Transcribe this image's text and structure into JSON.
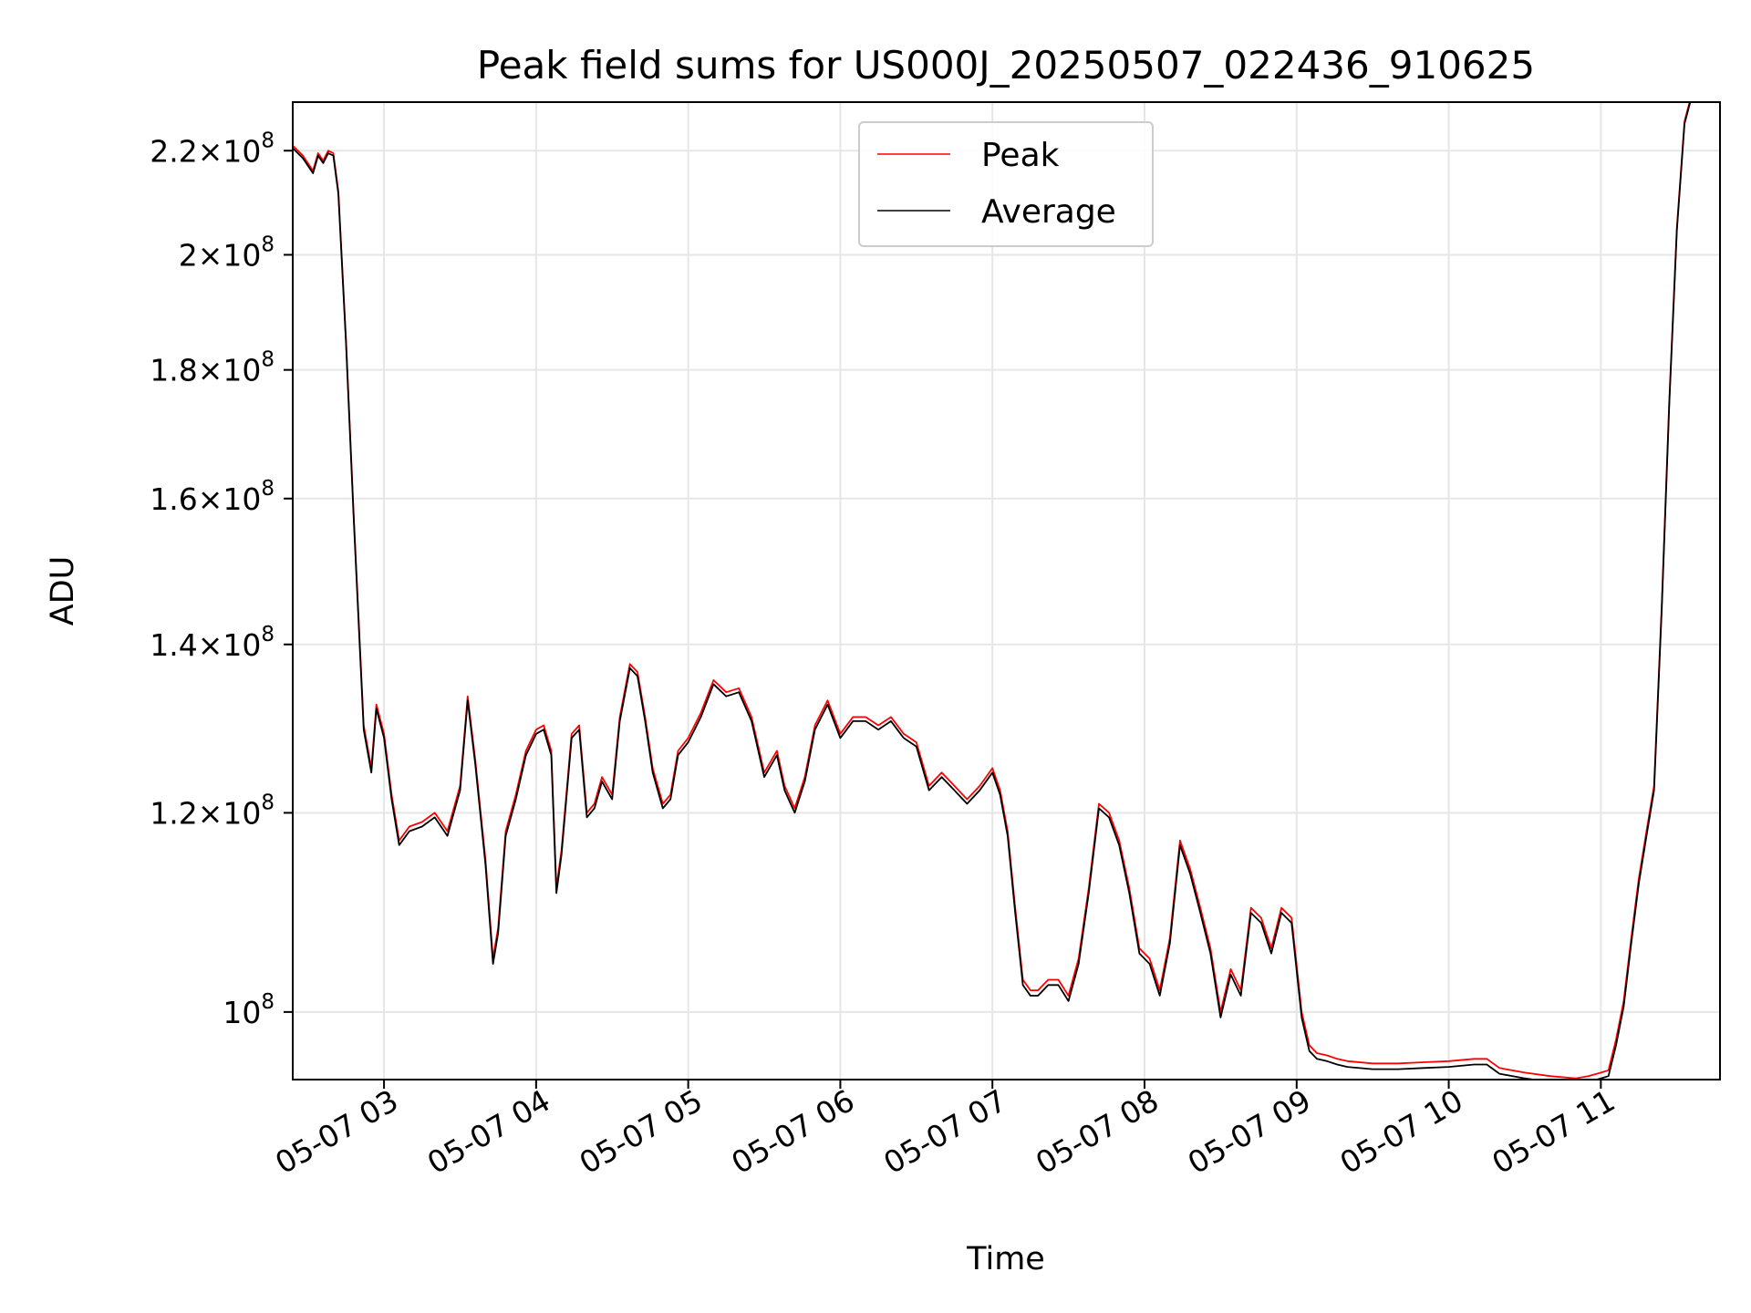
{
  "chart_data": {
    "type": "line",
    "title": "Peak field sums for US000J_20250507_022436_910625",
    "xlabel": "Time",
    "ylabel": "ADU",
    "y_scale": "log",
    "ylim": [
      94000000,
      230000000
    ],
    "xlim": [
      "05-07 02:24",
      "05-07 11:47"
    ],
    "grid": true,
    "legend_position": "top-center",
    "x_ticks": [
      {
        "time": "05-07 03:00",
        "label": "05-07 03"
      },
      {
        "time": "05-07 04:00",
        "label": "05-07 04"
      },
      {
        "time": "05-07 05:00",
        "label": "05-07 05"
      },
      {
        "time": "05-07 06:00",
        "label": "05-07 06"
      },
      {
        "time": "05-07 07:00",
        "label": "05-07 07"
      },
      {
        "time": "05-07 08:00",
        "label": "05-07 08"
      },
      {
        "time": "05-07 09:00",
        "label": "05-07 09"
      },
      {
        "time": "05-07 10:00",
        "label": "05-07 10"
      },
      {
        "time": "05-07 11:00",
        "label": "05-07 11"
      }
    ],
    "y_ticks": [
      {
        "value": 100000000,
        "mantissa": "",
        "exponent": "8"
      },
      {
        "value": 120000000,
        "mantissa": "1.2",
        "exponent": "8"
      },
      {
        "value": 140000000,
        "mantissa": "1.4",
        "exponent": "8"
      },
      {
        "value": 160000000,
        "mantissa": "1.6",
        "exponent": "8"
      },
      {
        "value": 180000000,
        "mantissa": "1.8",
        "exponent": "8"
      },
      {
        "value": 200000000,
        "mantissa": "2",
        "exponent": "8"
      },
      {
        "value": 220000000,
        "mantissa": "2.2",
        "exponent": "8"
      }
    ],
    "x": [
      "05-07 02:24",
      "05-07 02:28",
      "05-07 02:32",
      "05-07 02:34",
      "05-07 02:36",
      "05-07 02:38",
      "05-07 02:40",
      "05-07 02:42",
      "05-07 02:45",
      "05-07 02:48",
      "05-07 02:52",
      "05-07 02:55",
      "05-07 02:57",
      "05-07 03:00",
      "05-07 03:03",
      "05-07 03:06",
      "05-07 03:10",
      "05-07 03:15",
      "05-07 03:20",
      "05-07 03:25",
      "05-07 03:30",
      "05-07 03:33",
      "05-07 03:36",
      "05-07 03:40",
      "05-07 03:43",
      "05-07 03:45",
      "05-07 03:48",
      "05-07 03:52",
      "05-07 03:56",
      "05-07 04:00",
      "05-07 04:03",
      "05-07 04:06",
      "05-07 04:08",
      "05-07 04:10",
      "05-07 04:14",
      "05-07 04:17",
      "05-07 04:20",
      "05-07 04:23",
      "05-07 04:26",
      "05-07 04:30",
      "05-07 04:33",
      "05-07 04:37",
      "05-07 04:40",
      "05-07 04:43",
      "05-07 04:46",
      "05-07 04:50",
      "05-07 04:53",
      "05-07 04:56",
      "05-07 05:00",
      "05-07 05:05",
      "05-07 05:10",
      "05-07 05:15",
      "05-07 05:20",
      "05-07 05:25",
      "05-07 05:30",
      "05-07 05:35",
      "05-07 05:38",
      "05-07 05:42",
      "05-07 05:46",
      "05-07 05:50",
      "05-07 05:55",
      "05-07 06:00",
      "05-07 06:05",
      "05-07 06:10",
      "05-07 06:15",
      "05-07 06:20",
      "05-07 06:25",
      "05-07 06:30",
      "05-07 06:35",
      "05-07 06:40",
      "05-07 06:45",
      "05-07 06:50",
      "05-07 06:55",
      "05-07 07:00",
      "05-07 07:03",
      "05-07 07:06",
      "05-07 07:09",
      "05-07 07:12",
      "05-07 07:15",
      "05-07 07:18",
      "05-07 07:22",
      "05-07 07:26",
      "05-07 07:30",
      "05-07 07:34",
      "05-07 07:38",
      "05-07 07:42",
      "05-07 07:46",
      "05-07 07:50",
      "05-07 07:54",
      "05-07 07:58",
      "05-07 08:02",
      "05-07 08:06",
      "05-07 08:10",
      "05-07 08:14",
      "05-07 08:18",
      "05-07 08:22",
      "05-07 08:26",
      "05-07 08:30",
      "05-07 08:34",
      "05-07 08:38",
      "05-07 08:42",
      "05-07 08:46",
      "05-07 08:50",
      "05-07 08:54",
      "05-07 08:58",
      "05-07 09:02",
      "05-07 09:05",
      "05-07 09:08",
      "05-07 09:12",
      "05-07 09:16",
      "05-07 09:20",
      "05-07 09:30",
      "05-07 09:40",
      "05-07 09:50",
      "05-07 10:00",
      "05-07 10:10",
      "05-07 10:15",
      "05-07 10:20",
      "05-07 10:30",
      "05-07 10:40",
      "05-07 10:50",
      "05-07 10:55",
      "05-07 11:00",
      "05-07 11:03",
      "05-07 11:06",
      "05-07 11:09",
      "05-07 11:12",
      "05-07 11:15",
      "05-07 11:18",
      "05-07 11:21",
      "05-07 11:24",
      "05-07 11:27",
      "05-07 11:30",
      "05-07 11:33",
      "05-07 11:36"
    ],
    "series": [
      {
        "name": "Peak",
        "color": "#ff0000",
        "values": [
          221000000,
          219000000,
          216000000,
          219500000,
          218000000,
          220000000,
          219500000,
          212000000,
          185000000,
          158000000,
          130000000,
          125000000,
          132500000,
          129000000,
          122000000,
          117000000,
          118500000,
          119000000,
          120000000,
          118000000,
          123000000,
          133500000,
          126000000,
          115000000,
          105000000,
          108000000,
          118000000,
          122000000,
          127000000,
          129500000,
          130000000,
          127000000,
          112000000,
          116000000,
          129000000,
          130000000,
          120000000,
          121000000,
          124000000,
          122000000,
          131000000,
          137500000,
          136500000,
          131000000,
          125000000,
          121000000,
          122000000,
          127000000,
          128500000,
          131500000,
          135500000,
          134000000,
          134500000,
          131000000,
          124500000,
          127000000,
          123000000,
          120500000,
          124000000,
          130000000,
          133000000,
          129000000,
          131000000,
          131000000,
          130000000,
          131000000,
          129000000,
          128000000,
          123000000,
          124500000,
          123000000,
          121500000,
          123000000,
          125000000,
          122500000,
          118000000,
          110000000,
          103000000,
          102000000,
          102000000,
          103000000,
          103000000,
          101500000,
          105000000,
          112000000,
          121000000,
          120000000,
          117000000,
          112000000,
          106000000,
          105000000,
          102000000,
          107000000,
          117000000,
          114000000,
          110000000,
          106000000,
          100000000,
          104000000,
          102000000,
          110000000,
          109000000,
          106000000,
          110000000,
          109000000,
          100000000,
          97000000,
          96300000,
          96100000,
          95800000,
          95600000,
          95400000,
          95400000,
          95500000,
          95600000,
          95800000,
          95800000,
          95000000,
          94600000,
          94300000,
          94100000,
          94300000,
          94600000,
          94800000,
          97500000,
          101000000,
          107000000,
          113000000,
          118000000,
          123000000,
          145000000,
          175000000,
          205000000,
          226000000,
          232000000
        ]
      },
      {
        "name": "Average",
        "color": "#000000",
        "values": [
          220500000,
          218500000,
          215500000,
          219000000,
          217500000,
          219500000,
          219000000,
          211500000,
          184500000,
          157500000,
          129500000,
          124500000,
          132000000,
          128500000,
          121500000,
          116500000,
          118000000,
          118500000,
          119500000,
          117500000,
          122500000,
          133000000,
          125500000,
          114500000,
          104500000,
          107500000,
          117500000,
          121500000,
          126500000,
          129000000,
          129500000,
          126500000,
          111500000,
          115500000,
          128500000,
          129500000,
          119500000,
          120500000,
          123500000,
          121500000,
          130500000,
          137000000,
          136000000,
          130500000,
          124500000,
          120500000,
          121500000,
          126500000,
          128000000,
          131000000,
          135000000,
          133500000,
          134000000,
          130500000,
          124000000,
          126500000,
          122500000,
          120000000,
          123500000,
          129500000,
          132500000,
          128500000,
          130500000,
          130500000,
          129500000,
          130500000,
          128500000,
          127500000,
          122500000,
          124000000,
          122500000,
          121000000,
          122500000,
          124500000,
          122000000,
          117500000,
          109500000,
          102500000,
          101500000,
          101500000,
          102500000,
          102500000,
          101000000,
          104500000,
          111500000,
          120500000,
          119500000,
          116500000,
          111500000,
          105500000,
          104500000,
          101500000,
          106500000,
          116500000,
          113500000,
          109500000,
          105500000,
          99500000,
          103500000,
          101500000,
          109500000,
          108500000,
          105500000,
          109500000,
          108500000,
          99500000,
          96500000,
          95800000,
          95600000,
          95300000,
          95100000,
          94900000,
          94900000,
          95000000,
          95100000,
          95300000,
          95300000,
          94500000,
          94100000,
          93800000,
          93600000,
          93800000,
          94100000,
          94300000,
          97000000,
          100500000,
          106500000,
          112500000,
          117500000,
          122500000,
          144500000,
          174500000,
          204500000,
          225500000,
          231500000
        ]
      }
    ]
  }
}
